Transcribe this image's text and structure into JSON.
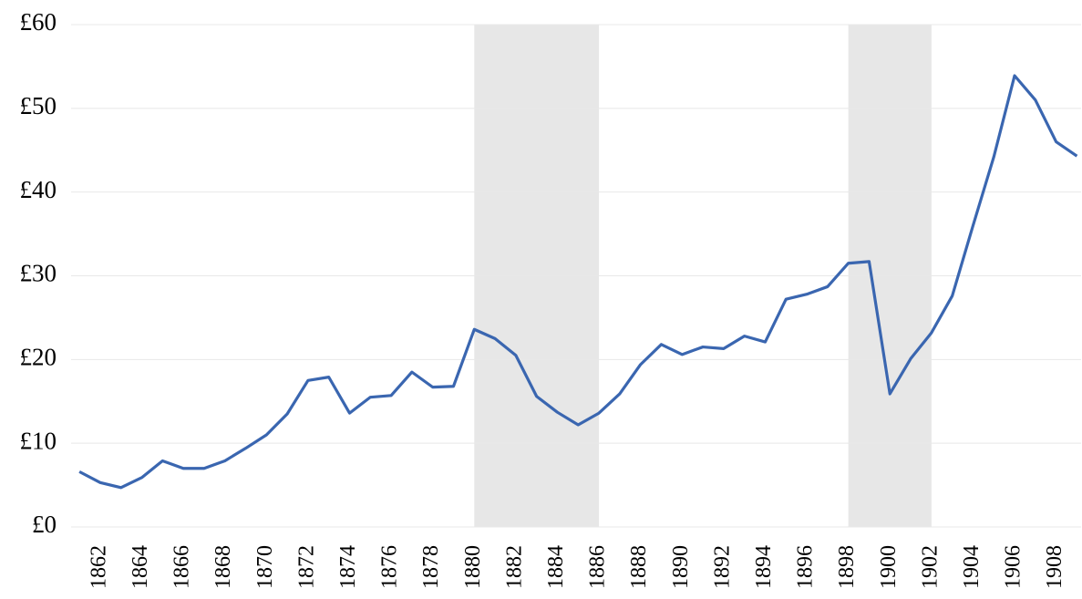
{
  "chart_data": {
    "type": "line",
    "x": [
      1861,
      1862,
      1863,
      1864,
      1865,
      1866,
      1867,
      1868,
      1869,
      1870,
      1871,
      1872,
      1873,
      1874,
      1875,
      1876,
      1877,
      1878,
      1879,
      1880,
      1881,
      1882,
      1883,
      1884,
      1885,
      1886,
      1887,
      1888,
      1889,
      1890,
      1891,
      1892,
      1893,
      1894,
      1895,
      1896,
      1897,
      1898,
      1899,
      1900,
      1901,
      1902,
      1903,
      1904,
      1905,
      1906,
      1907,
      1908,
      1909
    ],
    "series": [
      {
        "color": "#3a66b0",
        "values": [
          6.6,
          5.3,
          4.7,
          5.9,
          7.9,
          7.0,
          7.0,
          7.9,
          9.4,
          11.0,
          13.5,
          17.5,
          17.9,
          13.6,
          15.5,
          15.7,
          18.5,
          16.7,
          16.8,
          23.6,
          22.5,
          20.5,
          15.6,
          13.7,
          12.2,
          13.6,
          15.9,
          19.4,
          21.8,
          20.6,
          21.5,
          21.3,
          22.8,
          22.1,
          27.2,
          27.8,
          28.7,
          31.5,
          31.7,
          15.9,
          20.1,
          23.2,
          27.6,
          36.0,
          44.2,
          53.9,
          51.0,
          46.0,
          44.3
        ]
      }
    ],
    "xlim": [
      1860.6,
      1909.2
    ],
    "xticks": [
      1862,
      1864,
      1866,
      1868,
      1870,
      1872,
      1874,
      1876,
      1878,
      1880,
      1882,
      1884,
      1886,
      1888,
      1890,
      1892,
      1894,
      1896,
      1898,
      1900,
      1902,
      1904,
      1906,
      1908
    ],
    "ylim": [
      0,
      60
    ],
    "yticks": [
      {
        "value": 0,
        "label": "£0"
      },
      {
        "value": 10,
        "label": "£10"
      },
      {
        "value": 20,
        "label": "£20"
      },
      {
        "value": 30,
        "label": "£30"
      },
      {
        "value": 40,
        "label": "£40"
      },
      {
        "value": 50,
        "label": "£50"
      },
      {
        "value": 60,
        "label": "£60"
      }
    ],
    "shaded_periods": [
      [
        1880,
        1886
      ],
      [
        1898,
        1902
      ]
    ],
    "shade_color": "#e7e7e7",
    "grid": true
  }
}
